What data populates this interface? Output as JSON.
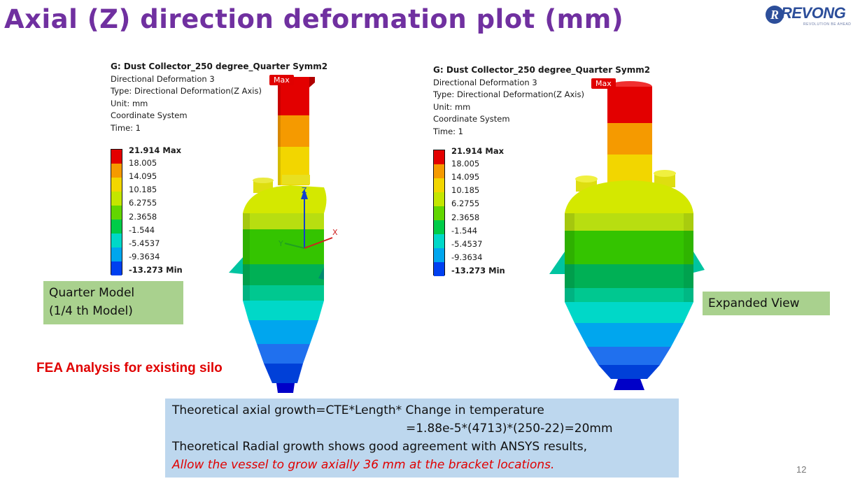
{
  "slide": {
    "title": "Axial (Z) direction deformation plot (mm)",
    "page_number": "12"
  },
  "logo": {
    "mark": "R",
    "text": "REVONG",
    "tagline": "REVOLUTION BE AHEAD"
  },
  "left_plot": {
    "header": "G: Dust Collector_250 degree_Quarter Symm2",
    "lines": [
      "Directional Deformation 3",
      "Type: Directional Deformation(Z Axis)",
      "Unit: mm",
      "Coordinate System",
      "Time: 1"
    ],
    "max_tag": "Max",
    "axis_labels": {
      "z": "Z",
      "y": "Y",
      "x": "X"
    },
    "label_box": [
      "Quarter Model",
      "(1/4 th Model)"
    ]
  },
  "right_plot": {
    "header": "G: Dust Collector_250 degree_Quarter Symm2",
    "lines": [
      "Directional Deformation 3",
      "Type: Directional Deformation(Z Axis)",
      "Unit: mm",
      "Coordinate System",
      "Time: 1"
    ],
    "max_tag": "Max",
    "label_box": [
      "Expanded View"
    ]
  },
  "legend": {
    "values": [
      "21.914 Max",
      "18.005",
      "14.095",
      "10.185",
      "6.2755",
      "2.3658",
      "-1.544",
      "-5.4537",
      "-9.3634",
      "-13.273 Min"
    ],
    "colors": [
      "#e30000",
      "#f59a00",
      "#f2d600",
      "#c4e600",
      "#62d600",
      "#00cc48",
      "#00d8c8",
      "#00a6ee",
      "#0040f0",
      "#0000c8"
    ]
  },
  "fea_label": "FEA Analysis for existing silo",
  "note": {
    "line1": "Theoretical axial growth=CTE*Length* Change in temperature",
    "line2": "=1.88e-5*(4713)*(250-22)=20mm",
    "line3": "Theoretical  Radial growth shows good agreement with ANSYS results,",
    "line4": "Allow the vessel to grow axially 36 mm at the bracket locations."
  }
}
